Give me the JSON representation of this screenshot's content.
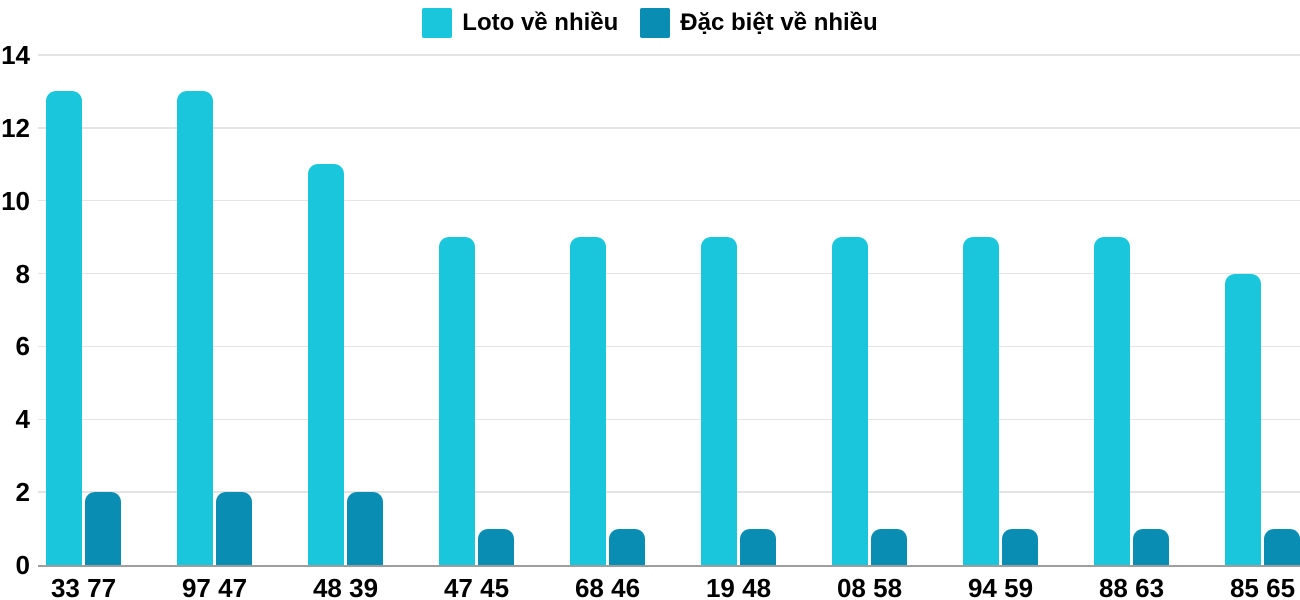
{
  "chart_data": {
    "type": "bar",
    "title": "",
    "xlabel": "",
    "ylabel": "",
    "categories": [
      "33 77",
      "97 47",
      "48 39",
      "47 45",
      "68 46",
      "19 48",
      "08 58",
      "94 59",
      "88 63",
      "85 65"
    ],
    "series": [
      {
        "name": "Loto về nhiều",
        "color": "#1AC6DB",
        "values": [
          13,
          13,
          11,
          9,
          9,
          9,
          9,
          9,
          9,
          8
        ]
      },
      {
        "name": "Đặc biệt về nhiều",
        "color": "#0A8DB2",
        "values": [
          2,
          2,
          2,
          1,
          1,
          1,
          1,
          1,
          1,
          1
        ]
      }
    ],
    "ylim": [
      0,
      14
    ],
    "yticks": [
      0,
      2,
      4,
      6,
      8,
      10,
      12,
      14
    ],
    "grid": "horizontal",
    "legend_position": "top"
  },
  "colors": {
    "background": "#ffffff",
    "gridline": "#e4e4e4",
    "axis_line": "#9e9e9e",
    "text": "#000000"
  }
}
